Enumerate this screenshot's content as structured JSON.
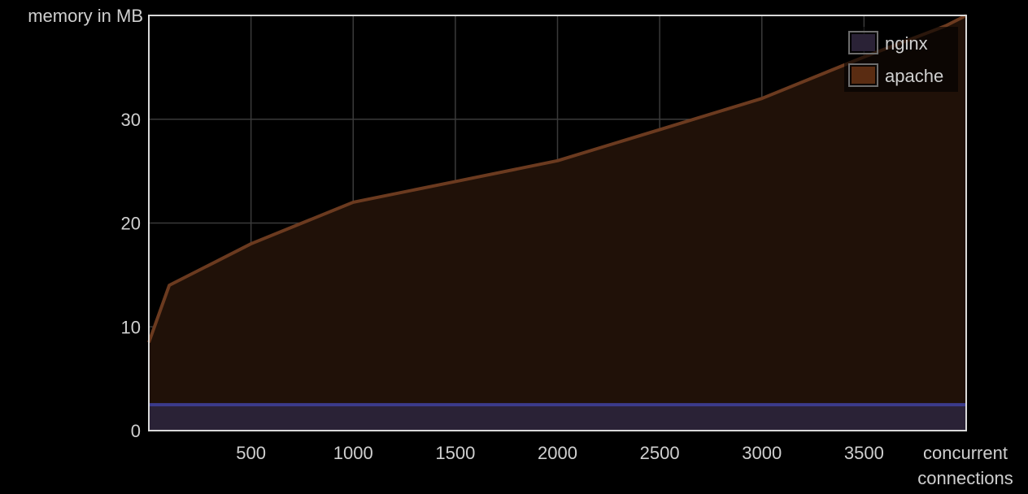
{
  "chart_data": {
    "type": "area",
    "title": "",
    "ylabel": "memory in MB",
    "xlabel_lines": [
      "concurrent",
      "connections"
    ],
    "xlim": [
      0,
      4000
    ],
    "ylim": [
      0,
      40
    ],
    "x_ticks": [
      500,
      1000,
      1500,
      2000,
      2500,
      3000,
      3500
    ],
    "x_tick_labels": [
      "500",
      "1000",
      "1500",
      "2000",
      "2500",
      "3000",
      "3500"
    ],
    "y_ticks": [
      0,
      10,
      20,
      30
    ],
    "y_tick_labels": [
      "0",
      "10",
      "20",
      "30"
    ],
    "grid": true,
    "legend_position": "top-right",
    "series": [
      {
        "name": "nginx",
        "color": "#3b3b8c",
        "fill": "#2a2236",
        "x": [
          0,
          4000
        ],
        "y": [
          2.5,
          2.5
        ]
      },
      {
        "name": "apache",
        "color": "#6b3a1f",
        "fill": "#201108",
        "x": [
          0,
          100,
          500,
          1000,
          1500,
          2000,
          2500,
          3000,
          3500,
          3900,
          4000
        ],
        "y": [
          8.5,
          14,
          18,
          22,
          24,
          26,
          29,
          32,
          36,
          39,
          40
        ]
      }
    ],
    "legend": {
      "items": [
        {
          "label": "nginx",
          "swatch": "#2a2236"
        },
        {
          "label": "apache",
          "swatch": "#5a2c12"
        }
      ]
    }
  }
}
